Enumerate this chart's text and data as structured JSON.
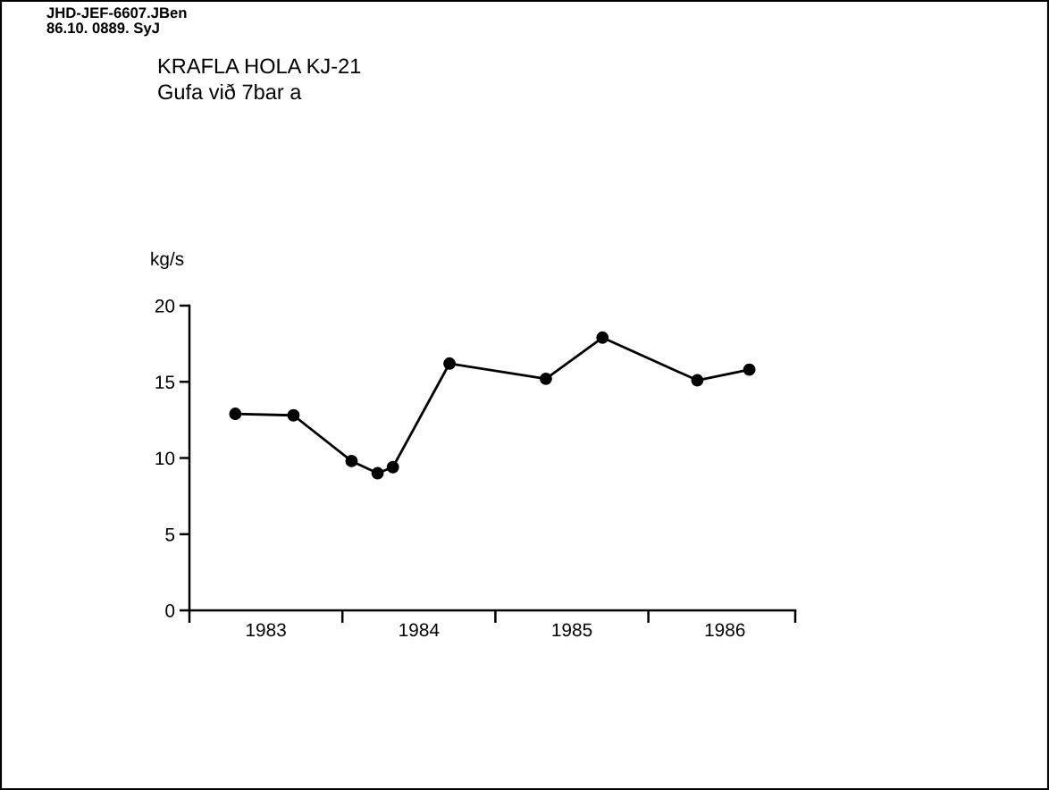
{
  "chart_data": {
    "type": "line",
    "title": "KRAFLA HOLA KJ-21",
    "subtitle": "Gufa við 7bar a",
    "ylabel": "kg/s",
    "annotations": [
      "JHD-JEF-6607.JBen",
      "86.10. 0889. SyJ"
    ],
    "x": [
      1983.3,
      1983.68,
      1984.06,
      1984.23,
      1984.33,
      1984.7,
      1985.33,
      1985.7,
      1986.32,
      1986.66
    ],
    "series": [
      {
        "color": "#000000",
        "values": [
          12.9,
          12.8,
          9.8,
          9.0,
          9.4,
          16.2,
          15.2,
          17.9,
          15.1,
          15.8
        ]
      }
    ],
    "xlim": [
      1983,
      1986.96
    ],
    "xticks": [
      {
        "value": 1983,
        "label": null
      },
      {
        "value": 1983.5,
        "label": "1983"
      },
      {
        "value": 1984,
        "label": null
      },
      {
        "value": 1984.5,
        "label": "1984"
      },
      {
        "value": 1985,
        "label": null
      },
      {
        "value": 1985.5,
        "label": "1985"
      },
      {
        "value": 1986,
        "label": null
      },
      {
        "value": 1986.5,
        "label": "1986"
      },
      {
        "value": 1986.96,
        "label": null
      }
    ],
    "ylim": [
      0,
      20
    ],
    "yticks": [
      0,
      5,
      10,
      15,
      20
    ],
    "grid": false,
    "legend": false,
    "marker": "circle",
    "line_style": "solid"
  }
}
